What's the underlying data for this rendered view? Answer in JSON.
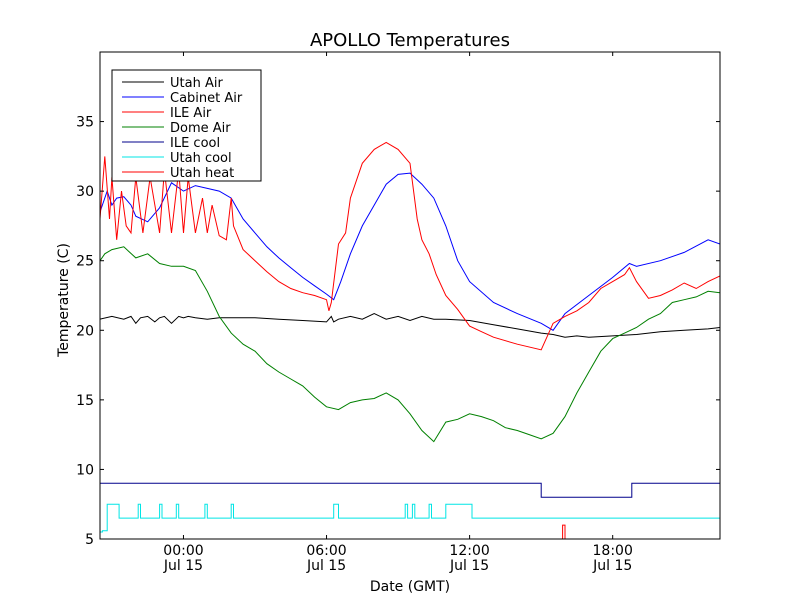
{
  "chart_data": {
    "type": "line",
    "title": "APOLLO Temperatures",
    "xlabel": "Date (GMT)",
    "ylabel": "Temperature (C)",
    "x_unit": "hours relative to 00:00 Jul 15",
    "xlim": [
      -3.5,
      22.5
    ],
    "ylim": [
      5,
      40
    ],
    "grid": false,
    "legend_position": "top-left",
    "x_ticks": [
      {
        "x": 0,
        "time": "00:00",
        "date": "Jul 15"
      },
      {
        "x": 6,
        "time": "06:00",
        "date": "Jul 15"
      },
      {
        "x": 12,
        "time": "12:00",
        "date": "Jul 15"
      },
      {
        "x": 18,
        "time": "18:00",
        "date": "Jul 15"
      }
    ],
    "y_ticks": [
      5,
      10,
      15,
      20,
      25,
      30,
      35
    ],
    "series": [
      {
        "name": "Utah Air",
        "color": "#000000",
        "x": [
          -3.5,
          -3.0,
          -2.5,
          -2.2,
          -2.0,
          -1.8,
          -1.5,
          -1.2,
          -1.0,
          -0.8,
          -0.5,
          -0.2,
          0,
          0.2,
          0.5,
          1.0,
          1.5,
          2.0,
          3,
          4,
          5,
          6,
          6.2,
          6.3,
          6.5,
          7,
          7.5,
          8,
          8.5,
          9,
          9.5,
          10,
          10.5,
          11,
          12,
          13,
          14,
          15,
          15.5,
          16,
          16.5,
          17,
          18,
          19,
          20,
          21,
          22,
          22.5
        ],
        "y": [
          20.8,
          21.0,
          20.8,
          21.0,
          20.5,
          20.9,
          21.0,
          20.6,
          20.9,
          21.0,
          20.5,
          21.0,
          20.9,
          21.0,
          20.9,
          20.8,
          20.9,
          20.9,
          20.9,
          20.8,
          20.7,
          20.6,
          21.0,
          20.6,
          20.8,
          21.0,
          20.8,
          21.2,
          20.8,
          21.0,
          20.7,
          21.0,
          20.8,
          20.8,
          20.7,
          20.4,
          20.1,
          19.8,
          19.7,
          19.5,
          19.6,
          19.5,
          19.6,
          19.7,
          19.9,
          20.0,
          20.1,
          20.2
        ]
      },
      {
        "name": "Cabinet Air",
        "color": "#0000ff",
        "x": [
          -3.5,
          -3.2,
          -3.0,
          -2.8,
          -2.5,
          -2.2,
          -2.0,
          -1.5,
          -1.0,
          -0.5,
          0,
          0.5,
          1.0,
          1.5,
          2.0,
          2.5,
          3.0,
          3.5,
          4.0,
          4.5,
          5.0,
          5.5,
          6.0,
          6.3,
          6.6,
          7.0,
          7.5,
          8.0,
          8.5,
          9.0,
          9.5,
          10.0,
          10.5,
          11.0,
          11.5,
          12.0,
          13.0,
          14.0,
          15.0,
          15.5,
          16.0,
          17.0,
          18.0,
          18.7,
          19.0,
          20.0,
          21.0,
          22.0,
          22.5
        ],
        "y": [
          28.5,
          30.0,
          29.0,
          29.5,
          29.6,
          29.0,
          28.2,
          27.8,
          28.8,
          30.6,
          30.0,
          30.4,
          30.2,
          30.0,
          29.5,
          28.0,
          27.0,
          26.0,
          25.2,
          24.5,
          23.8,
          23.2,
          22.6,
          22.2,
          23.5,
          25.5,
          27.5,
          29.0,
          30.5,
          31.2,
          31.3,
          30.5,
          29.5,
          27.5,
          25.0,
          23.5,
          22.0,
          21.2,
          20.5,
          20.0,
          21.2,
          22.5,
          23.8,
          24.8,
          24.6,
          25.0,
          25.6,
          26.5,
          26.2
        ]
      },
      {
        "name": "ILE Air",
        "color": "#ff0000",
        "x": [
          -3.5,
          -3.3,
          -3.1,
          -3.0,
          -2.8,
          -2.6,
          -2.4,
          -2.2,
          -2.0,
          -1.7,
          -1.4,
          -1.0,
          -0.8,
          -0.5,
          -0.2,
          0,
          0.2,
          0.5,
          0.8,
          1.0,
          1.2,
          1.5,
          1.8,
          2.0,
          2.1,
          2.5,
          3.0,
          3.5,
          4.0,
          4.5,
          5.0,
          5.5,
          6.0,
          6.1,
          6.2,
          6.5,
          6.8,
          7.0,
          7.5,
          8.0,
          8.5,
          9.0,
          9.5,
          9.8,
          10.0,
          10.3,
          10.6,
          11.0,
          11.5,
          12.0,
          12.5,
          13.0,
          14.0,
          15.0,
          15.5,
          16.0,
          16.5,
          17.0,
          17.5,
          18.0,
          18.5,
          18.7,
          19.0,
          19.5,
          20.0,
          20.5,
          21.0,
          21.5,
          22.0,
          22.5
        ],
        "y": [
          28.0,
          32.5,
          28.0,
          31.0,
          26.5,
          30.0,
          27.5,
          27.0,
          31.0,
          27.0,
          31.0,
          27.0,
          31.5,
          27.0,
          31.5,
          27.0,
          31.0,
          27.0,
          29.5,
          27.0,
          29.0,
          26.8,
          26.5,
          29.5,
          27.5,
          25.8,
          25.0,
          24.2,
          23.5,
          23.0,
          22.7,
          22.5,
          22.2,
          21.4,
          22.0,
          26.2,
          27.0,
          29.5,
          32.0,
          33.0,
          33.5,
          33.0,
          32.0,
          28.0,
          26.5,
          25.5,
          24.0,
          22.5,
          21.5,
          20.3,
          19.9,
          19.5,
          19.0,
          18.6,
          20.5,
          21.0,
          21.4,
          22.0,
          23.0,
          23.5,
          24.0,
          24.5,
          23.5,
          22.3,
          22.5,
          22.9,
          23.4,
          23.0,
          23.5,
          23.9
        ]
      },
      {
        "name": "Dome Air",
        "color": "#008000",
        "x": [
          -3.5,
          -3.3,
          -3.0,
          -2.5,
          -2.0,
          -1.5,
          -1.0,
          -0.5,
          0,
          0.5,
          1.0,
          1.5,
          2.0,
          2.5,
          3.0,
          3.5,
          4.0,
          4.5,
          5.0,
          5.5,
          6.0,
          6.5,
          7.0,
          7.5,
          8.0,
          8.5,
          9.0,
          9.5,
          10.0,
          10.5,
          11.0,
          11.5,
          12.0,
          12.5,
          13.0,
          13.5,
          14.0,
          14.5,
          15.0,
          15.5,
          16.0,
          16.5,
          17.0,
          17.5,
          18.0,
          18.5,
          19.0,
          19.5,
          20.0,
          20.5,
          21.0,
          21.5,
          22.0,
          22.5
        ],
        "y": [
          25.0,
          25.5,
          25.8,
          26.0,
          25.2,
          25.5,
          24.8,
          24.6,
          24.6,
          24.3,
          22.8,
          21.0,
          19.8,
          19.0,
          18.5,
          17.6,
          17.0,
          16.5,
          16.0,
          15.2,
          14.5,
          14.3,
          14.8,
          15.0,
          15.1,
          15.5,
          15.0,
          14.0,
          12.8,
          12.0,
          13.4,
          13.6,
          14.0,
          13.8,
          13.5,
          13.0,
          12.8,
          12.5,
          12.2,
          12.6,
          13.8,
          15.5,
          17.0,
          18.5,
          19.4,
          19.8,
          20.2,
          20.8,
          21.2,
          22.0,
          22.2,
          22.4,
          22.8,
          22.7
        ]
      },
      {
        "name": "ILE cool",
        "color": "#00008b",
        "x": [
          -3.5,
          15.0,
          15.0,
          18.8,
          18.8,
          22.5
        ],
        "y": [
          9.0,
          9.0,
          8.0,
          8.0,
          9.0,
          9.0
        ]
      },
      {
        "name": "Utah cool",
        "color": "#00e5e5",
        "mode": "step",
        "x": [
          -3.5,
          -3.4,
          -3.2,
          -2.7,
          -2.5,
          -1.9,
          -1.8,
          -1.0,
          -0.9,
          -0.3,
          -0.2,
          0.9,
          1.0,
          2.0,
          2.1,
          6.3,
          6.5,
          9.3,
          9.4,
          9.6,
          9.7,
          10.3,
          10.4,
          11.0,
          11.1,
          12.0,
          12.1,
          22.5
        ],
        "y": [
          5.5,
          5.6,
          7.5,
          6.5,
          6.5,
          7.5,
          6.5,
          7.5,
          6.5,
          7.5,
          6.5,
          7.5,
          6.5,
          7.5,
          6.5,
          7.5,
          6.5,
          7.5,
          6.5,
          7.5,
          6.5,
          7.5,
          6.5,
          7.5,
          7.5,
          7.5,
          6.5,
          6.5
        ]
      },
      {
        "name": "Utah heat",
        "color": "#ff0000",
        "x": [
          15.9,
          15.9,
          16.0,
          16.0
        ],
        "y": [
          5.0,
          6.0,
          6.0,
          5.0
        ]
      }
    ]
  }
}
